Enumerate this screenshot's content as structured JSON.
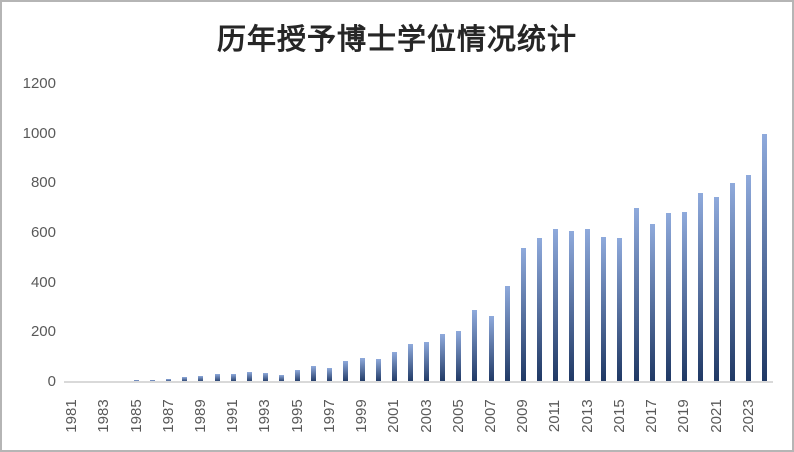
{
  "chart_data": {
    "type": "bar",
    "title": "历年授予博士学位情况统计",
    "xlabel": "",
    "ylabel": "",
    "x": [
      1981,
      1982,
      1983,
      1984,
      1985,
      1986,
      1987,
      1988,
      1989,
      1990,
      1991,
      1992,
      1993,
      1994,
      1995,
      1996,
      1997,
      1998,
      1999,
      2000,
      2001,
      2002,
      2003,
      2004,
      2005,
      2006,
      2007,
      2008,
      2009,
      2010,
      2011,
      2012,
      2013,
      2014,
      2015,
      2016,
      2017,
      2018,
      2019,
      2020,
      2021,
      2022,
      2023,
      2024
    ],
    "values": [
      0,
      0,
      0,
      6,
      10,
      7,
      14,
      19,
      26,
      34,
      31,
      40,
      36,
      30,
      47,
      63,
      55,
      85,
      98,
      93,
      120,
      152,
      163,
      192,
      205,
      290,
      265,
      385,
      540,
      580,
      615,
      610,
      615,
      585,
      580,
      700,
      635,
      680,
      685,
      760,
      745,
      800,
      835,
      1000
    ],
    "x_tick_labels": [
      "1981",
      "1983",
      "1985",
      "1987",
      "1989",
      "1991",
      "1993",
      "1995",
      "1997",
      "1999",
      "2001",
      "2003",
      "2005",
      "2007",
      "2009",
      "2011",
      "2013",
      "2015",
      "2017",
      "2019",
      "2021",
      "2023"
    ],
    "y_ticks": [
      0,
      200,
      400,
      600,
      800,
      1000,
      1200
    ],
    "ylim": [
      0,
      1200
    ],
    "grid": false,
    "legend": "none",
    "colors": {
      "bar_gradient_top": "#8FAADC",
      "bar_gradient_bottom": "#1F3864",
      "axis_line": "#D9D9D9",
      "tick_label": "#595959",
      "title": "#262626",
      "border": "#B5B5B5",
      "background": "#FFFFFF"
    }
  }
}
